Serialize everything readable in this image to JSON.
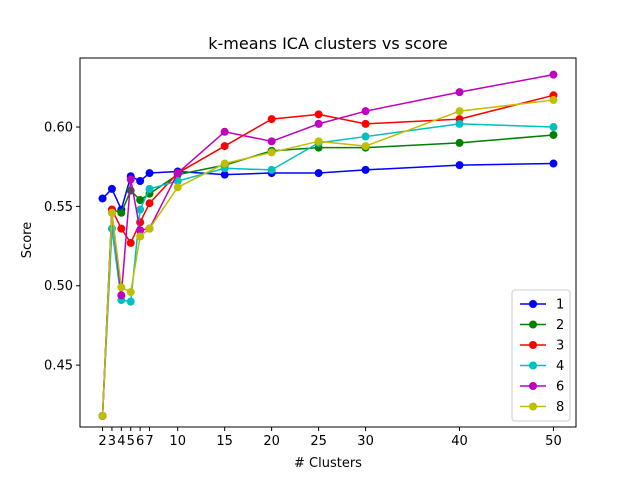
{
  "chart_data": {
    "type": "line",
    "title": "k-means ICA clusters vs score",
    "xlabel": "# Clusters",
    "ylabel": "Score",
    "x": [
      2,
      3,
      4,
      5,
      6,
      7,
      10,
      15,
      20,
      25,
      30,
      40,
      50
    ],
    "xticks": [
      "2",
      "3",
      "4",
      "5",
      "6",
      "7",
      "10",
      "15",
      "20",
      "25",
      "30",
      "40",
      "50"
    ],
    "yticks": [
      "0.45",
      "0.50",
      "0.55",
      "0.60"
    ],
    "ytick_values": [
      0.45,
      0.5,
      0.55,
      0.6
    ],
    "xlim": [
      -0.4,
      52.4
    ],
    "ylim": [
      0.411,
      0.6435
    ],
    "grid": false,
    "legend_position": "bottom-right",
    "series": [
      {
        "name": "1",
        "color": "#0000ff",
        "values": [
          0.555,
          0.561,
          0.548,
          0.569,
          0.566,
          0.571,
          0.572,
          0.57,
          0.571,
          0.571,
          0.573,
          0.576,
          0.577
        ]
      },
      {
        "name": "2",
        "color": "#008000",
        "values": [
          0.418,
          0.548,
          0.546,
          0.56,
          0.554,
          0.558,
          0.57,
          0.576,
          0.585,
          0.587,
          0.587,
          0.59,
          0.595
        ]
      },
      {
        "name": "3",
        "color": "#ff0000",
        "values": [
          0.418,
          0.548,
          0.536,
          0.527,
          0.54,
          0.552,
          0.571,
          0.588,
          0.605,
          0.608,
          0.602,
          0.605,
          0.62
        ]
      },
      {
        "name": "4",
        "color": "#00bfbf",
        "values": [
          0.418,
          0.536,
          0.491,
          0.49,
          0.548,
          0.561,
          0.566,
          0.574,
          0.573,
          0.59,
          0.594,
          0.602,
          0.6
        ]
      },
      {
        "name": "6",
        "color": "#bf00bf",
        "values": [
          0.418,
          0.546,
          0.494,
          0.567,
          0.535,
          0.536,
          0.571,
          0.597,
          0.591,
          0.602,
          0.61,
          0.622,
          0.633
        ]
      },
      {
        "name": "8",
        "color": "#bfbf00",
        "values": [
          0.418,
          0.546,
          0.499,
          0.496,
          0.531,
          0.536,
          0.562,
          0.577,
          0.584,
          0.591,
          0.588,
          0.61,
          0.617
        ]
      }
    ]
  }
}
